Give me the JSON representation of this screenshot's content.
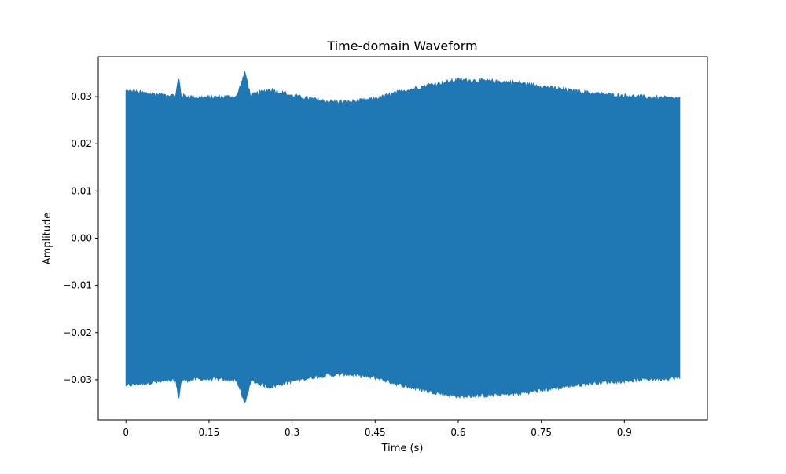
{
  "chart_data": {
    "type": "line",
    "title": "Time-domain Waveform",
    "xlabel": "Time (s)",
    "ylabel": "Amplitude",
    "xlim": [
      -0.05,
      1.05
    ],
    "ylim": [
      -0.0385,
      0.0385
    ],
    "x_ticks": [
      {
        "value": 0,
        "label": "0"
      },
      {
        "value": 0.15,
        "label": "0.15"
      },
      {
        "value": 0.3,
        "label": "0.3"
      },
      {
        "value": 0.45,
        "label": "0.45"
      },
      {
        "value": 0.6,
        "label": "0.6"
      },
      {
        "value": 0.75,
        "label": "0.75"
      },
      {
        "value": 0.9,
        "label": "0.9"
      }
    ],
    "y_ticks": [
      {
        "value": 0.03,
        "label": "0.03"
      },
      {
        "value": 0.02,
        "label": "0.02"
      },
      {
        "value": 0.01,
        "label": "0.01"
      },
      {
        "value": 0.0,
        "label": "0.00"
      },
      {
        "value": -0.01,
        "label": "−0.01"
      },
      {
        "value": -0.02,
        "label": "−0.02"
      },
      {
        "value": -0.03,
        "label": "−0.03"
      }
    ],
    "grid": false,
    "series": [
      {
        "color": "#1f77b4",
        "duration": 1.0,
        "envelope": {
          "x": [
            0.0,
            0.05,
            0.09,
            0.095,
            0.1,
            0.13,
            0.2,
            0.215,
            0.225,
            0.26,
            0.3,
            0.36,
            0.4,
            0.45,
            0.5,
            0.55,
            0.6,
            0.65,
            0.7,
            0.75,
            0.8,
            0.85,
            0.9,
            0.95,
            1.0
          ],
          "upper": [
            0.0312,
            0.0305,
            0.0302,
            0.0341,
            0.0302,
            0.0298,
            0.03,
            0.0352,
            0.0302,
            0.0315,
            0.0302,
            0.029,
            0.0288,
            0.0295,
            0.0312,
            0.0325,
            0.0335,
            0.0333,
            0.033,
            0.0322,
            0.0313,
            0.0306,
            0.0302,
            0.0298,
            0.0296
          ],
          "lower": [
            -0.0312,
            -0.0305,
            -0.0302,
            -0.0341,
            -0.0302,
            -0.0298,
            -0.03,
            -0.0352,
            -0.0302,
            -0.0315,
            -0.0302,
            -0.029,
            -0.0288,
            -0.0295,
            -0.0312,
            -0.0325,
            -0.0335,
            -0.0333,
            -0.033,
            -0.0322,
            -0.0313,
            -0.0306,
            -0.0302,
            -0.0298,
            -0.0296
          ]
        }
      }
    ]
  }
}
